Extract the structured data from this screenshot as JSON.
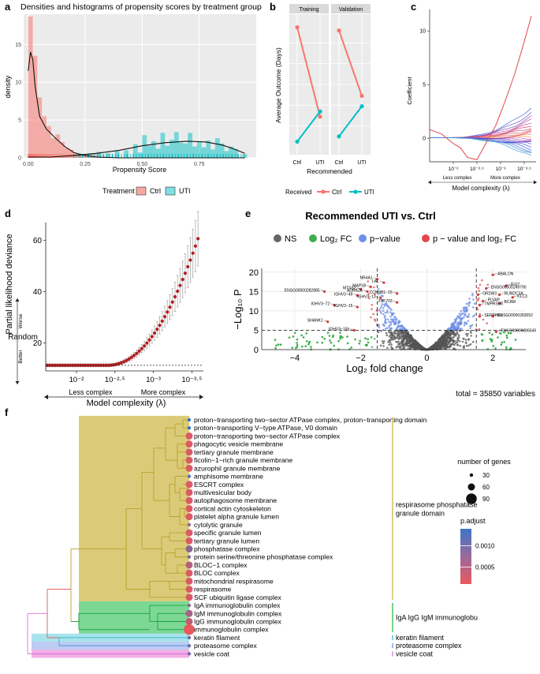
{
  "panel_letters": {
    "a": "a",
    "b": "b",
    "c": "c",
    "d": "d",
    "e": "e",
    "f": "f"
  },
  "chart_data": [
    {
      "id": "a",
      "type": "bar",
      "title": "Densities and histograms of propensity scores by treatment group",
      "xlabel": "Propensity Score",
      "ylabel": "density",
      "xlim": [
        -0.02,
        1.0
      ],
      "ylim": [
        0,
        19
      ],
      "x_ticks": [
        {
          "v": 0,
          "label": "0.00"
        },
        {
          "v": 0.25,
          "label": "0.25"
        },
        {
          "v": 0.5,
          "label": "0.50"
        },
        {
          "v": 0.75,
          "label": "0.75"
        }
      ],
      "y_ticks": [
        {
          "v": 0,
          "label": "0"
        },
        {
          "v": 5,
          "label": "5"
        },
        {
          "v": 10,
          "label": "10"
        },
        {
          "v": 15,
          "label": "15"
        }
      ],
      "legend_title": "Treatment",
      "legend": [
        {
          "name": "Ctrl",
          "color": "#f8766d"
        },
        {
          "name": "UTI",
          "color": "#00bfc4"
        }
      ],
      "bin_width": 0.02,
      "ctrl_bins": [
        {
          "x": 0.0,
          "h": 18.7
        },
        {
          "x": 0.02,
          "h": 13.5
        },
        {
          "x": 0.04,
          "h": 8.0
        },
        {
          "x": 0.06,
          "h": 5.5
        },
        {
          "x": 0.08,
          "h": 4.2
        },
        {
          "x": 0.1,
          "h": 2.6
        },
        {
          "x": 0.12,
          "h": 3.1
        },
        {
          "x": 0.14,
          "h": 2.1
        },
        {
          "x": 0.16,
          "h": 1.3
        },
        {
          "x": 0.18,
          "h": 1.1
        },
        {
          "x": 0.2,
          "h": 0.6
        },
        {
          "x": 0.22,
          "h": 0.4
        },
        {
          "x": 0.24,
          "h": 0.3
        },
        {
          "x": 0.28,
          "h": 0.2
        }
      ],
      "uti_bins": [
        {
          "x": 0.22,
          "h": 0.5
        },
        {
          "x": 0.26,
          "h": 0.6
        },
        {
          "x": 0.3,
          "h": 0.8
        },
        {
          "x": 0.34,
          "h": 0.6
        },
        {
          "x": 0.38,
          "h": 0.9
        },
        {
          "x": 0.42,
          "h": 1.0
        },
        {
          "x": 0.46,
          "h": 1.8
        },
        {
          "x": 0.48,
          "h": 0.7
        },
        {
          "x": 0.5,
          "h": 3.0
        },
        {
          "x": 0.52,
          "h": 1.6
        },
        {
          "x": 0.54,
          "h": 2.2
        },
        {
          "x": 0.56,
          "h": 1.2
        },
        {
          "x": 0.58,
          "h": 3.3
        },
        {
          "x": 0.6,
          "h": 1.6
        },
        {
          "x": 0.62,
          "h": 2.4
        },
        {
          "x": 0.64,
          "h": 3.4
        },
        {
          "x": 0.66,
          "h": 2.0
        },
        {
          "x": 0.68,
          "h": 1.9
        },
        {
          "x": 0.7,
          "h": 3.3
        },
        {
          "x": 0.72,
          "h": 1.5
        },
        {
          "x": 0.74,
          "h": 2.2
        },
        {
          "x": 0.76,
          "h": 1.4
        },
        {
          "x": 0.78,
          "h": 2.3
        },
        {
          "x": 0.8,
          "h": 1.1
        },
        {
          "x": 0.82,
          "h": 2.6
        },
        {
          "x": 0.84,
          "h": 1.9
        },
        {
          "x": 0.86,
          "h": 0.9
        },
        {
          "x": 0.88,
          "h": 1.5
        },
        {
          "x": 0.9,
          "h": 1.2
        },
        {
          "x": 0.94,
          "h": 0.5
        }
      ],
      "ctrl_density": [
        [
          0,
          11.5
        ],
        [
          0.01,
          14.0
        ],
        [
          0.02,
          13.0
        ],
        [
          0.03,
          9.5
        ],
        [
          0.05,
          5.5
        ],
        [
          0.08,
          3.8
        ],
        [
          0.12,
          2.6
        ],
        [
          0.16,
          1.5
        ],
        [
          0.2,
          0.7
        ],
        [
          0.25,
          0.3
        ],
        [
          0.3,
          0.1
        ],
        [
          0.4,
          0.0
        ],
        [
          0.5,
          0.0
        ],
        [
          0.7,
          0.0
        ],
        [
          0.95,
          0.0
        ]
      ],
      "uti_density": [
        [
          0.0,
          0.1
        ],
        [
          0.1,
          0.1
        ],
        [
          0.2,
          0.3
        ],
        [
          0.3,
          0.6
        ],
        [
          0.4,
          1.0
        ],
        [
          0.5,
          1.6
        ],
        [
          0.6,
          2.0
        ],
        [
          0.7,
          2.2
        ],
        [
          0.78,
          2.1
        ],
        [
          0.85,
          1.7
        ],
        [
          0.9,
          1.2
        ],
        [
          0.95,
          0.6
        ]
      ]
    },
    {
      "id": "b",
      "type": "line",
      "xlabel": "Recommended",
      "ylabel": "Average Outcome (Days)",
      "categories": [
        "Ctrl",
        "UTI"
      ],
      "facets": [
        {
          "label": "Training",
          "series": [
            {
              "name": "Ctrl",
              "values": [
                11.5,
                2.9
              ]
            },
            {
              "name": "UTI",
              "values": [
                0.5,
                3.4
              ]
            }
          ]
        },
        {
          "label": "Validation",
          "series": [
            {
              "name": "Ctrl",
              "values": [
                11.2,
                4.9
              ]
            },
            {
              "name": "UTI",
              "values": [
                1.0,
                3.9
              ]
            }
          ]
        }
      ],
      "ylim": [
        0,
        12
      ],
      "legend_title": "Received",
      "legend": [
        {
          "name": "Ctrl",
          "color": "#f8766d"
        },
        {
          "name": "UTI",
          "color": "#00bfc4"
        }
      ]
    },
    {
      "id": "c",
      "type": "line",
      "xlabel": "Model complexity (λ)",
      "ylabel": "Coefficient",
      "y_ticks": [
        {
          "v": 0,
          "label": "0"
        },
        {
          "v": 5,
          "label": "5"
        },
        {
          "v": 10,
          "label": "10"
        }
      ],
      "x_ticks": [
        {
          "v": -2,
          "label": "10⁻²"
        },
        {
          "v": -2.5,
          "label": "10⁻²·⁵"
        },
        {
          "v": -3,
          "label": "10⁻³"
        },
        {
          "v": -3.5,
          "label": "10⁻³·⁵"
        }
      ],
      "xlim": [
        -1.5,
        -3.75
      ],
      "ylim": [
        -2.2,
        12
      ],
      "annotations": {
        "left": "Less complex",
        "right": "More complex"
      },
      "red_path": [
        [
          -1.5,
          0.8
        ],
        [
          -1.75,
          0.4
        ],
        [
          -2.0,
          -0.5
        ],
        [
          -2.15,
          -0.9
        ],
        [
          -2.3,
          -1.8
        ],
        [
          -2.5,
          -2.0
        ],
        [
          -2.7,
          -0.4
        ],
        [
          -2.9,
          1.2
        ],
        [
          -3.1,
          3.5
        ],
        [
          -3.3,
          6.0
        ],
        [
          -3.5,
          9.0
        ],
        [
          -3.65,
          11.4
        ]
      ],
      "fan_endpoints": [
        2.9,
        2.4,
        2.0,
        1.7,
        1.4,
        1.2,
        1.0,
        0.8,
        0.6,
        0.45,
        0.3,
        0.15,
        0.0,
        -0.15,
        -0.3,
        -0.45,
        -0.6,
        -0.8,
        -1.0,
        -1.2,
        -1.4,
        -1.7
      ],
      "fan_colors": [
        "#4060d0",
        "#6a50c8",
        "#8f45b8",
        "#b04090",
        "#c0408a",
        "#cc3f7a",
        "#d04a70",
        "#d85a6c",
        "#e06a6a",
        "#e87060",
        "#ee7a58",
        "#f08a55",
        "#cc5c9c",
        "#a855b0",
        "#8850c0",
        "#6f48c8",
        "#5c48cc",
        "#4c4ccc",
        "#3a58d0",
        "#3a70d0",
        "#3f85cf",
        "#3a98d0"
      ]
    },
    {
      "id": "d",
      "type": "scatter",
      "xlabel": "Model complexity (λ)",
      "ylabel": "Partial likelihood deviance",
      "y_ticks": [
        {
          "v": 20,
          "label": "20"
        },
        {
          "v": 40,
          "label": "40"
        },
        {
          "v": 60,
          "label": "60"
        }
      ],
      "x_ticks": [
        {
          "v": -2,
          "label": "10⁻²"
        },
        {
          "v": -2.5,
          "label": "10⁻²·⁵"
        },
        {
          "v": -3,
          "label": "10⁻³"
        },
        {
          "v": -3.5,
          "label": "10⁻³·⁵"
        }
      ],
      "xlim": [
        -1.6,
        -3.65
      ],
      "ylim": [
        9,
        67
      ],
      "baseline": 11.2,
      "baseline_label": "Random",
      "side_labels": {
        "up": "Worse",
        "down": "Better"
      },
      "annotations": {
        "left": "Less complex",
        "right": "More complex"
      },
      "n_points": 60,
      "lambda_start": -1.62,
      "lambda_end": -3.58
    },
    {
      "id": "e",
      "type": "scatter",
      "title": "Recommended UTI vs. Ctrl",
      "xlabel": "Log₂ fold change",
      "ylabel": "−Log₁₀ P",
      "xlim": [
        -5,
        3
      ],
      "ylim": [
        0,
        21
      ],
      "x_ticks": [
        {
          "v": -4,
          "label": "−4"
        },
        {
          "v": -2,
          "label": "−2"
        },
        {
          "v": 0,
          "label": "0"
        },
        {
          "v": 2,
          "label": "2"
        }
      ],
      "y_ticks": [
        {
          "v": 0,
          "label": "0"
        },
        {
          "v": 5,
          "label": "5"
        },
        {
          "v": 10,
          "label": "10"
        },
        {
          "v": 15,
          "label": "15"
        },
        {
          "v": 20,
          "label": "20"
        }
      ],
      "fc_cutoff": 1.5,
      "p_cutoff": 5,
      "legend": [
        {
          "name": "NS",
          "color": "#666666"
        },
        {
          "name": "Log₂ FC",
          "color": "#3fad4b"
        },
        {
          "name": "p−value",
          "color": "#6d8ee6"
        },
        {
          "name": "p − value and log₂ FC",
          "color": "#e0474c"
        }
      ],
      "caption": "total = 35850 variables",
      "labels": [
        {
          "text": "ABALON",
          "x": 2.0,
          "y": 19.3
        },
        {
          "text": "IFI27",
          "x": 2.4,
          "y": 16.5
        },
        {
          "text": "ENSG00000249790",
          "x": 1.8,
          "y": 15.8
        },
        {
          "text": "RUNDC3A",
          "x": 2.2,
          "y": 14.2
        },
        {
          "text": "KLC3",
          "x": 2.6,
          "y": 13.5
        },
        {
          "text": "OR2W3",
          "x": 1.55,
          "y": 14.2
        },
        {
          "text": "BCAM",
          "x": 2.2,
          "y": 12.0
        },
        {
          "text": "TMPRSS6",
          "x": 1.6,
          "y": 11.5
        },
        {
          "text": "PLVAP",
          "x": 1.7,
          "y": 12.5
        },
        {
          "text": "ENSG00000283052",
          "x": 2.0,
          "y": 8.6
        },
        {
          "text": "ENSG00000286549",
          "x": 2.1,
          "y": 4.6
        },
        {
          "text": "SERPINI1",
          "x": 1.6,
          "y": 8.6
        },
        {
          "text": "NR4A1",
          "x": -1.5,
          "y": 18.2
        },
        {
          "text": "LAL",
          "x": -1.3,
          "y": 17.3
        },
        {
          "text": "MAP1B",
          "x": -1.7,
          "y": 16.2
        },
        {
          "text": "MTSS2",
          "x": -2.0,
          "y": 15.6
        },
        {
          "text": "ADRA2A",
          "x": -1.8,
          "y": 15.0
        },
        {
          "text": "IGHV3−49",
          "x": -2.1,
          "y": 14.0
        },
        {
          "text": "IGHV3−13",
          "x": -1.4,
          "y": 13.4
        },
        {
          "text": "ENSG00000282885",
          "x": -3.1,
          "y": 15.0
        },
        {
          "text": "IGHV3−72",
          "x": -2.8,
          "y": 11.5
        },
        {
          "text": "IGHV3−15",
          "x": -2.1,
          "y": 11.0
        },
        {
          "text": "SHANK1",
          "x": -3.0,
          "y": 7.2
        },
        {
          "text": "IGHV3−15b",
          "x": -2.2,
          "y": 5.0
        },
        {
          "text": "ZNF703",
          "x": -0.9,
          "y": 12.2
        },
        {
          "text": "CCNNB1−15",
          "x": -0.9,
          "y": 14.5
        }
      ]
    },
    {
      "id": "f",
      "type": "scatter",
      "ylabel": "",
      "terms": [
        {
          "name": "proton−transporting two−sector ATPase complex, proton−transporting domain",
          "genes": 30,
          "padj": 0.0014
        },
        {
          "name": "proton−transporting V−type ATPase, V0 domain",
          "genes": 30,
          "padj": 0.0014
        },
        {
          "name": "proton−transporting two−sector ATPase complex",
          "genes": 60,
          "padj": 0.0002
        },
        {
          "name": "phagocytic vesicle membrane",
          "genes": 60,
          "padj": 0.0002
        },
        {
          "name": "tertiary granule membrane",
          "genes": 60,
          "padj": 0.0002
        },
        {
          "name": "ficolin−1−rich granule membrane",
          "genes": 60,
          "padj": 0.0002
        },
        {
          "name": "azurophil granule membrane",
          "genes": 60,
          "padj": 0.0002
        },
        {
          "name": "amphisome membrane",
          "genes": 30,
          "padj": 0.0012
        },
        {
          "name": "ESCRT complex",
          "genes": 60,
          "padj": 0.0002
        },
        {
          "name": "multivesicular body",
          "genes": 60,
          "padj": 0.0002
        },
        {
          "name": "autophagosome membrane",
          "genes": 60,
          "padj": 0.0002
        },
        {
          "name": "cortical actin cytoskeleton",
          "genes": 60,
          "padj": 0.0002
        },
        {
          "name": "platelet alpha granule lumen",
          "genes": 60,
          "padj": 0.0002
        },
        {
          "name": "cytolytic granule",
          "genes": 30,
          "padj": 0.0007
        },
        {
          "name": "specific granule lumen",
          "genes": 60,
          "padj": 0.0002
        },
        {
          "name": "tertiary granule lumen",
          "genes": 60,
          "padj": 0.0002
        },
        {
          "name": "phosphatase complex",
          "genes": 60,
          "padj": 0.0008
        },
        {
          "name": "protein serine/threonine phosphatase complex",
          "genes": 30,
          "padj": 0.0009
        },
        {
          "name": "BLOC−1 complex",
          "genes": 60,
          "padj": 0.0005
        },
        {
          "name": "BLOC complex",
          "genes": 60,
          "padj": 0.0002
        },
        {
          "name": "mitochondrial respirasome",
          "genes": 60,
          "padj": 0.0002
        },
        {
          "name": "respirasome",
          "genes": 60,
          "padj": 0.0002
        },
        {
          "name": "SCF ubiquitin ligase complex",
          "genes": 60,
          "padj": 0.0002
        },
        {
          "name": "IgA immunoglobulin complex",
          "genes": 30,
          "padj": 0.0008
        },
        {
          "name": "IgM immunoglobulin complex",
          "genes": 60,
          "padj": 0.0006
        },
        {
          "name": "IgG immunoglobulin complex",
          "genes": 60,
          "padj": 0.0004
        },
        {
          "name": "immunoglobulin complex",
          "genes": 90,
          "padj": 0.0001
        },
        {
          "name": "keratin filament",
          "genes": 30,
          "padj": 0.001
        },
        {
          "name": "proteasome complex",
          "genes": 30,
          "padj": 0.001
        },
        {
          "name": "vesicle coat",
          "genes": 30,
          "padj": 0.001
        }
      ],
      "clusters": [
        {
          "label1": "respirasome phosphatase",
          "label2": "granule domain",
          "color": "#c7b037",
          "start": 0,
          "end": 22
        },
        {
          "label1": "IgA IgG IgM immunoglobu",
          "label2": "",
          "color": "#19b33f",
          "start": 23,
          "end": 26
        },
        {
          "label1": "keratin filament",
          "label2": "",
          "color": "#2eb3c7",
          "start": 27,
          "end": 27
        },
        {
          "label1": "proteasome complex",
          "label2": "",
          "color": "#6b8ee8",
          "start": 28,
          "end": 28
        },
        {
          "label1": "vesicle coat",
          "label2": "",
          "color": "#e26bd6",
          "start": 29,
          "end": 29
        }
      ],
      "size_legend": {
        "title": "number of genes",
        "items": [
          {
            "v": 30,
            "label": "30"
          },
          {
            "v": 60,
            "label": "60"
          },
          {
            "v": 90,
            "label": "90"
          }
        ]
      },
      "color_legend": {
        "title": "p.adjust",
        "ticks": [
          {
            "v": 0.001,
            "label": "0.0010"
          },
          {
            "v": 0.0005,
            "label": "0.0005"
          }
        ],
        "low": "#e8585c",
        "high": "#3e74c6",
        "vmin": 0.0001,
        "vmax": 0.0014
      }
    }
  ]
}
